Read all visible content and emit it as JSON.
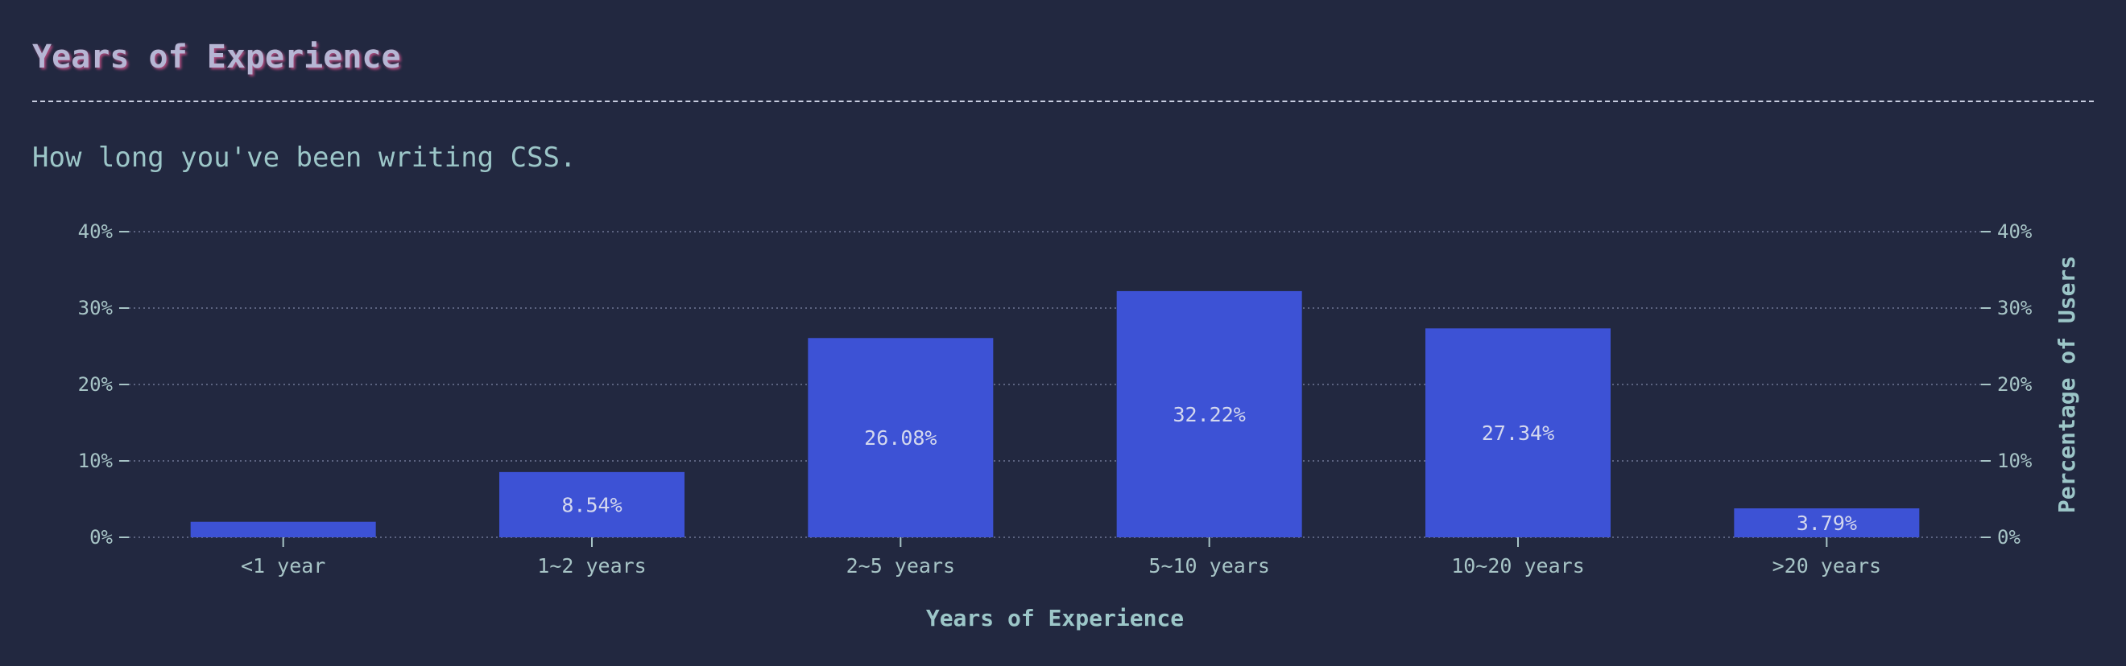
{
  "header": {
    "title": "Years of Experience",
    "subtitle": "How long you've been writing CSS."
  },
  "colors": {
    "background": "#222840",
    "bar": "#3d52d5",
    "grid": "#5c6380",
    "text": "#a7c4c6"
  },
  "chart_data": {
    "type": "bar",
    "categories": [
      "<1 year",
      "1~2 years",
      "2~5 years",
      "5~10 years",
      "10~20 years",
      ">20 years"
    ],
    "values": [
      2.03,
      8.54,
      26.08,
      32.22,
      27.34,
      3.79
    ],
    "data_labels": [
      "",
      "8.54%",
      "26.08%",
      "32.22%",
      "27.34%",
      "3.79%"
    ],
    "xlabel": "Years of Experience",
    "ylabel": "Percentage of Users",
    "ylim": [
      0,
      40
    ],
    "y_ticks": [
      "0%",
      "10%",
      "20%",
      "30%",
      "40%"
    ],
    "grid": true,
    "legend": false
  }
}
